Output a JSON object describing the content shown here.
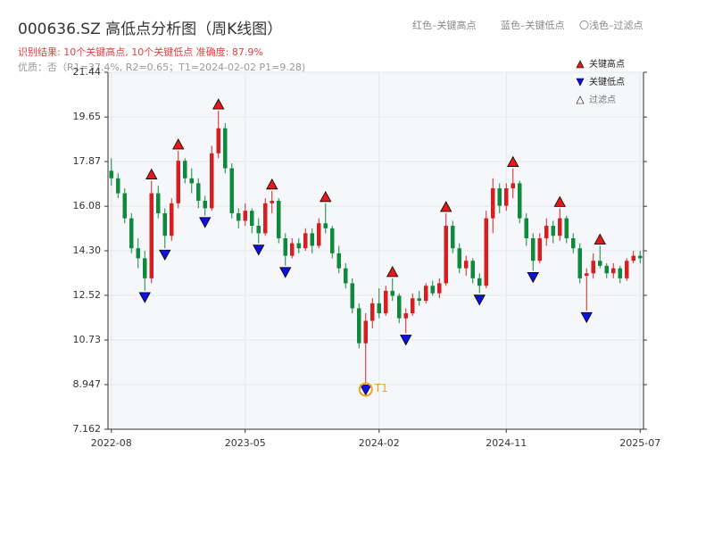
{
  "chart_data": {
    "type": "candlestick",
    "title": "000636.SZ 高低点分析图（周K线图）",
    "subtitle": "识别结果: 10个关键高点, 10个关键低点  准确度: 87.9%",
    "note": "优质：否（R1=37.4%, R2=0.65；T1=2024-02-02 P1=9.28)",
    "top_legend": [
      "红色–关键高点",
      "蓝色–关键低点",
      "〇浅色–过滤点"
    ],
    "categories": [
      "2022-08",
      null,
      null,
      null,
      null,
      null,
      null,
      null,
      null,
      null,
      null,
      null,
      null,
      null,
      null,
      null,
      null,
      null,
      null,
      null,
      "2023-05",
      null,
      null,
      null,
      null,
      null,
      null,
      null,
      null,
      null,
      null,
      null,
      null,
      null,
      null,
      null,
      null,
      null,
      null,
      null,
      "2024-02",
      null,
      null,
      null,
      null,
      null,
      null,
      null,
      null,
      null,
      null,
      null,
      null,
      null,
      null,
      null,
      null,
      null,
      null,
      "2024-11",
      null,
      null,
      null,
      null,
      null,
      null,
      null,
      null,
      null,
      null,
      null,
      null,
      null,
      null,
      null,
      null,
      null,
      null,
      null,
      "2025-07"
    ],
    "open": [
      17.5,
      17.2,
      16.6,
      15.6,
      14.4,
      14.0,
      13.2,
      16.6,
      15.8,
      14.9,
      16.2,
      17.9,
      17.2,
      17.0,
      16.3,
      16.0,
      18.2,
      19.2,
      17.6,
      15.8,
      15.5,
      15.9,
      15.3,
      15.0,
      16.2,
      16.3,
      14.8,
      14.1,
      14.6,
      14.4,
      15.0,
      14.5,
      15.4,
      15.2,
      14.2,
      13.6,
      13.0,
      12.0,
      10.6,
      11.5,
      12.2,
      11.8,
      12.7,
      12.5,
      11.6,
      11.8,
      12.4,
      12.3,
      12.9,
      12.6,
      13.0,
      15.3,
      14.4,
      13.6,
      13.9,
      13.2,
      12.9,
      15.6,
      16.8,
      16.1,
      16.8,
      17.0,
      15.6,
      14.8,
      13.9,
      14.8,
      15.3,
      14.9,
      15.6,
      14.8,
      14.4,
      13.3,
      13.4,
      13.9,
      13.7,
      13.4,
      13.6,
      13.2,
      13.9,
      14.1
    ],
    "high": [
      18.0,
      17.4,
      16.8,
      15.8,
      14.8,
      14.3,
      17.1,
      16.9,
      16.0,
      16.4,
      18.3,
      18.0,
      17.6,
      17.2,
      16.5,
      18.5,
      19.9,
      19.4,
      17.8,
      16.0,
      16.2,
      16.0,
      15.6,
      16.4,
      16.7,
      16.4,
      15.0,
      14.8,
      14.8,
      15.2,
      15.2,
      15.6,
      16.2,
      15.3,
      14.5,
      13.8,
      13.2,
      12.2,
      11.8,
      12.4,
      12.8,
      12.9,
      13.2,
      12.6,
      12.0,
      12.6,
      12.7,
      13.0,
      13.1,
      13.2,
      15.8,
      15.5,
      14.6,
      14.1,
      14.0,
      13.4,
      15.9,
      17.2,
      17.0,
      17.0,
      17.6,
      17.1,
      15.8,
      15.0,
      15.0,
      15.6,
      15.5,
      16.0,
      15.7,
      15.0,
      14.6,
      13.6,
      14.2,
      14.5,
      13.8,
      13.8,
      13.7,
      14.0,
      14.3,
      14.3
    ],
    "low": [
      16.9,
      16.4,
      15.4,
      14.2,
      13.6,
      12.7,
      13.0,
      15.6,
      14.4,
      14.7,
      16.0,
      17.0,
      16.6,
      16.0,
      15.7,
      15.9,
      18.0,
      17.4,
      15.6,
      15.2,
      15.3,
      15.0,
      14.6,
      14.9,
      15.8,
      14.6,
      13.7,
      14.0,
      14.2,
      14.3,
      14.2,
      14.4,
      15.0,
      14.0,
      13.4,
      12.8,
      11.8,
      10.4,
      9.0,
      11.2,
      11.6,
      11.7,
      12.3,
      11.4,
      11.0,
      11.7,
      12.1,
      12.2,
      12.5,
      12.4,
      12.9,
      14.2,
      13.4,
      13.3,
      13.0,
      12.6,
      12.8,
      15.0,
      15.8,
      15.9,
      16.4,
      15.4,
      14.5,
      13.5,
      13.8,
      14.5,
      14.6,
      14.7,
      14.6,
      14.2,
      13.0,
      11.9,
      13.2,
      13.6,
      13.2,
      13.2,
      13.0,
      13.1,
      13.8,
      13.8
    ],
    "close": [
      17.2,
      16.6,
      15.6,
      14.4,
      14.0,
      13.2,
      16.6,
      15.8,
      14.9,
      16.2,
      17.9,
      17.2,
      17.0,
      16.3,
      16.0,
      18.2,
      19.2,
      17.6,
      15.8,
      15.5,
      15.9,
      15.3,
      15.0,
      16.2,
      16.3,
      14.8,
      14.1,
      14.6,
      14.4,
      15.0,
      14.5,
      15.4,
      15.2,
      14.2,
      13.6,
      13.0,
      12.0,
      10.6,
      11.5,
      12.2,
      11.8,
      12.7,
      12.5,
      11.6,
      11.8,
      12.4,
      12.3,
      12.9,
      12.6,
      13.0,
      15.3,
      14.4,
      13.6,
      13.9,
      13.2,
      12.9,
      15.6,
      16.8,
      16.1,
      16.8,
      17.0,
      15.6,
      14.8,
      13.9,
      14.8,
      15.3,
      14.9,
      15.6,
      14.8,
      14.4,
      13.2,
      13.4,
      13.9,
      13.7,
      13.4,
      13.6,
      13.2,
      13.9,
      14.1,
      14.0
    ],
    "up_color": "#d42020",
    "down_color": "#0f8a3c",
    "key_highs": {
      "name": "关键高点",
      "color": "#e31a1c",
      "values": [
        null,
        null,
        null,
        null,
        null,
        null,
        17.1,
        null,
        null,
        null,
        18.3,
        null,
        null,
        null,
        null,
        null,
        19.9,
        null,
        null,
        null,
        null,
        null,
        null,
        null,
        16.7,
        null,
        null,
        null,
        null,
        null,
        null,
        null,
        16.2,
        null,
        null,
        null,
        null,
        null,
        null,
        null,
        null,
        null,
        13.2,
        null,
        null,
        null,
        null,
        null,
        null,
        null,
        15.8,
        null,
        null,
        null,
        null,
        null,
        null,
        null,
        null,
        null,
        17.6,
        null,
        null,
        null,
        null,
        null,
        null,
        16.0,
        null,
        null,
        null,
        null,
        null,
        14.5,
        null,
        null,
        null,
        null,
        null,
        null
      ]
    },
    "key_lows": {
      "name": "关键低点",
      "color": "#1010e0",
      "values": [
        null,
        null,
        null,
        null,
        null,
        12.7,
        null,
        null,
        14.4,
        null,
        null,
        null,
        null,
        null,
        15.7,
        null,
        null,
        null,
        null,
        null,
        null,
        null,
        14.6,
        null,
        null,
        null,
        13.7,
        null,
        null,
        null,
        null,
        null,
        null,
        null,
        null,
        null,
        null,
        null,
        9.0,
        null,
        null,
        null,
        null,
        null,
        11.0,
        null,
        null,
        null,
        null,
        null,
        null,
        null,
        null,
        null,
        null,
        12.6,
        null,
        null,
        null,
        null,
        null,
        null,
        null,
        13.5,
        null,
        null,
        null,
        null,
        null,
        null,
        null,
        11.9,
        null,
        null,
        null,
        null,
        null,
        null,
        null,
        null
      ]
    },
    "filtered_label": "过滤点",
    "t1_label": "T1",
    "ylim": [
      7.162,
      21.44
    ],
    "yticks": [
      7.162,
      8.947,
      10.73,
      12.52,
      {
        "value": 14.3,
        "label": "14.30"
      },
      16.08,
      17.87,
      19.65,
      21.44
    ],
    "grid": true
  }
}
